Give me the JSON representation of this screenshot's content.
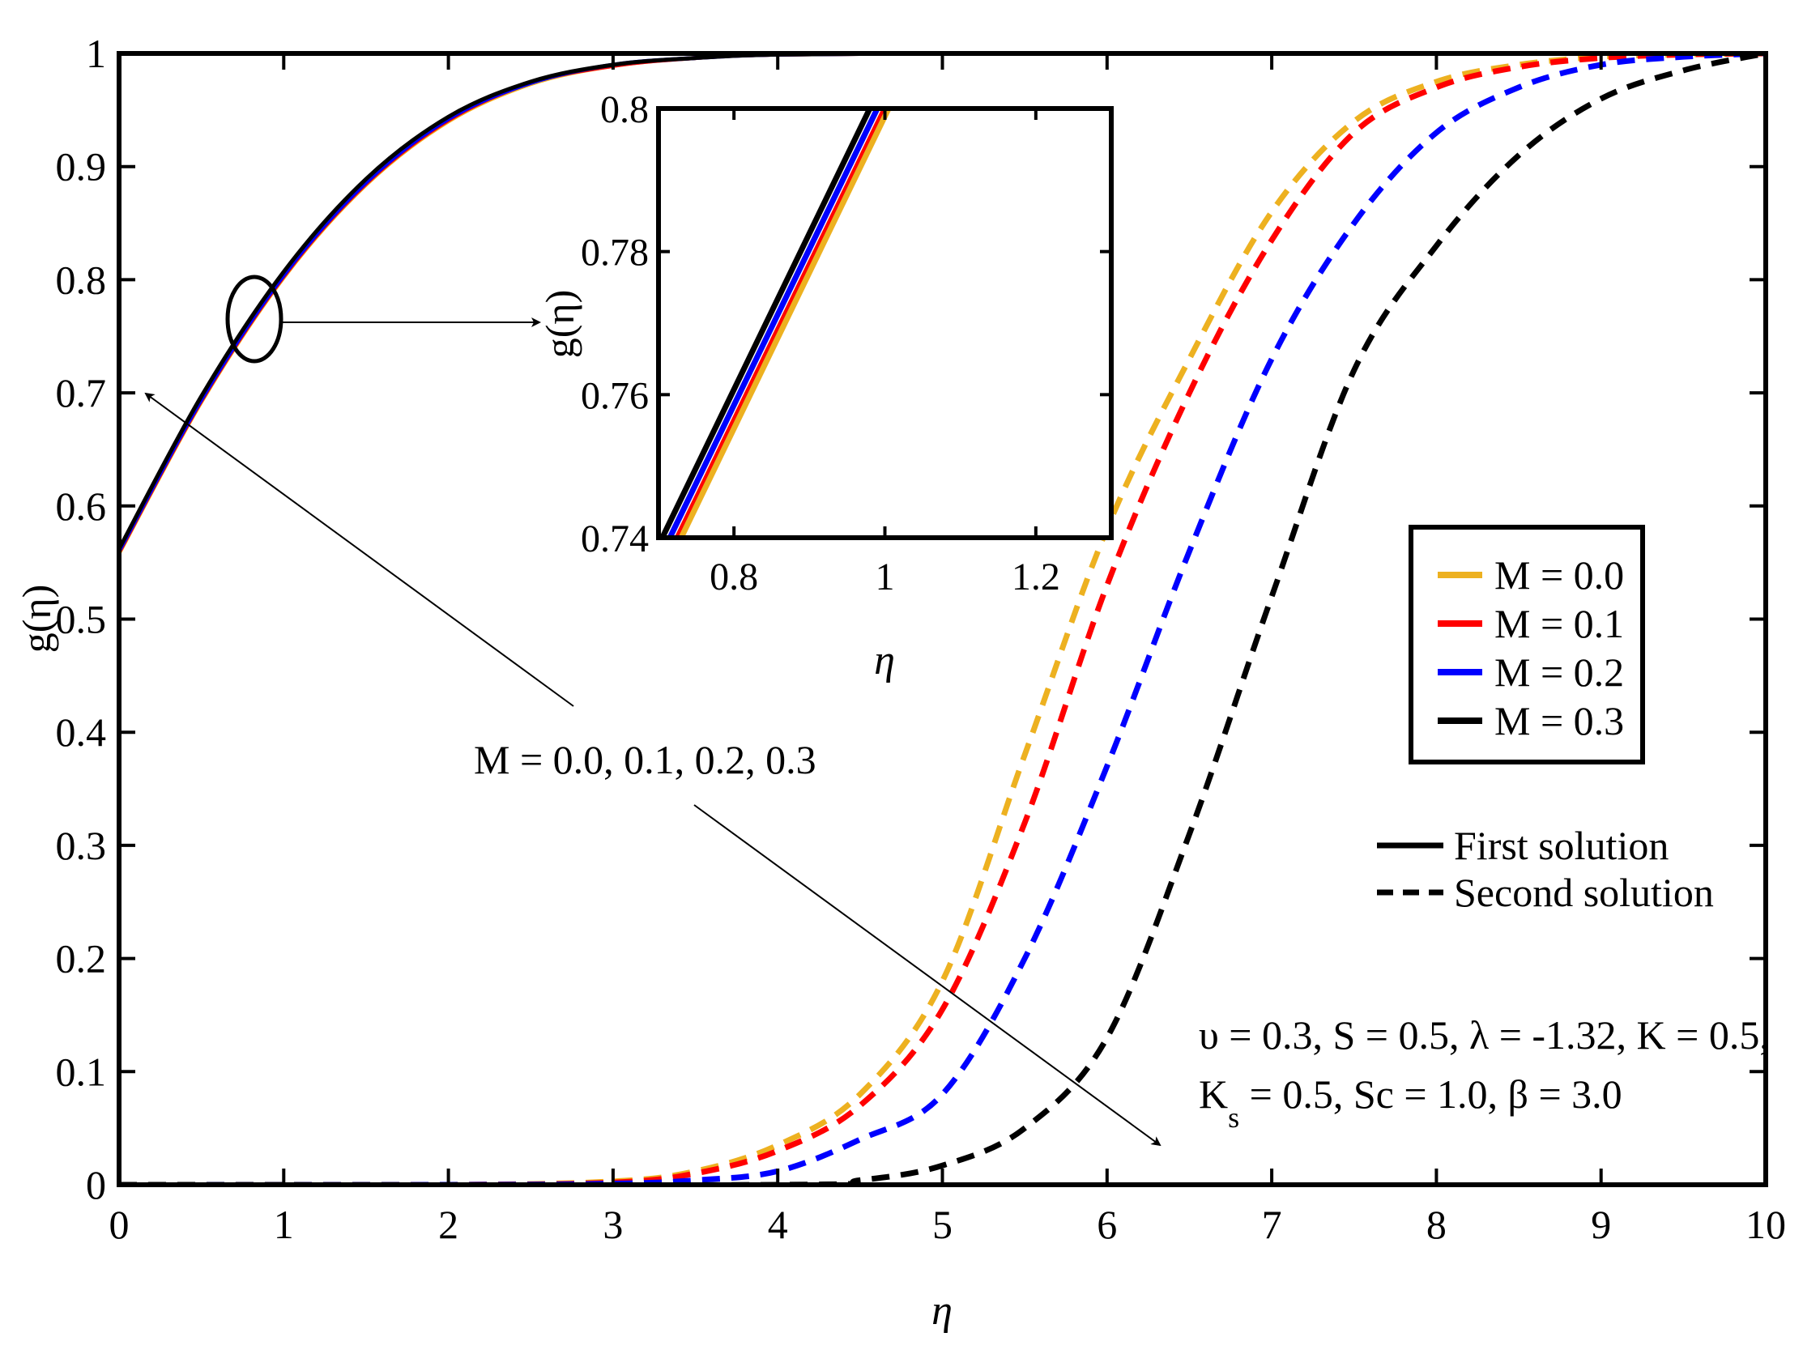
{
  "chart_data": {
    "type": "line",
    "title": "",
    "xlabel": "η",
    "ylabel": "g(η)",
    "xlim": [
      0,
      10
    ],
    "ylim": [
      0,
      1
    ],
    "xticks": [
      "0",
      "1",
      "2",
      "3",
      "4",
      "5",
      "6",
      "7",
      "8",
      "9",
      "10"
    ],
    "yticks": [
      "0",
      "0.1",
      "0.2",
      "0.3",
      "0.4",
      "0.5",
      "0.6",
      "0.7",
      "0.8",
      "0.9",
      "1"
    ],
    "grid": false,
    "legend_position": "right",
    "legend": [
      {
        "label": "M = 0.0",
        "color": "#EDB120"
      },
      {
        "label": "M = 0.1",
        "color": "#FF0000"
      },
      {
        "label": "M = 0.2",
        "color": "#0000FF"
      },
      {
        "label": "M = 0.3",
        "color": "#000000"
      }
    ],
    "style_legend": [
      {
        "label": "First solution",
        "dash": "solid"
      },
      {
        "label": "Second solution",
        "dash": "dashed"
      }
    ],
    "annotation_arrow_label": "M = 0.0, 0.1, 0.2, 0.3",
    "parameters_line1": "υ = 0.3, S = 0.5, λ = -1.32, K = 0.5,",
    "parameters_line2_k": "K",
    "parameters_line2_sub": "s",
    "parameters_line2_rest": " = 0.5, Sc = 1.0, β = 3.0",
    "series": [
      {
        "M": 0.0,
        "solution": "first",
        "color": "#EDB120",
        "x": [
          0,
          0.5,
          1,
          1.5,
          2,
          2.5,
          3,
          3.5,
          4,
          5,
          6,
          10
        ],
        "y": [
          0.558,
          0.692,
          0.802,
          0.884,
          0.94,
          0.973,
          0.989,
          0.996,
          0.999,
          1.0,
          1.0,
          1.0
        ]
      },
      {
        "M": 0.1,
        "solution": "first",
        "color": "#FF0000",
        "x": [
          0,
          0.5,
          1,
          1.5,
          2,
          2.5,
          3,
          3.5,
          4,
          5,
          6,
          10
        ],
        "y": [
          0.559,
          0.693,
          0.803,
          0.885,
          0.941,
          0.974,
          0.989,
          0.996,
          0.999,
          1.0,
          1.0,
          1.0
        ]
      },
      {
        "M": 0.2,
        "solution": "first",
        "color": "#0000FF",
        "x": [
          0,
          0.5,
          1,
          1.5,
          2,
          2.5,
          3,
          3.5,
          4,
          5,
          6,
          10
        ],
        "y": [
          0.56,
          0.694,
          0.804,
          0.886,
          0.942,
          0.974,
          0.99,
          0.996,
          0.999,
          1.0,
          1.0,
          1.0
        ]
      },
      {
        "M": 0.3,
        "solution": "first",
        "color": "#000000",
        "x": [
          0,
          0.5,
          1,
          1.5,
          2,
          2.5,
          3,
          3.5,
          4,
          5,
          6,
          10
        ],
        "y": [
          0.562,
          0.697,
          0.807,
          0.889,
          0.944,
          0.975,
          0.99,
          0.996,
          0.999,
          1.0,
          1.0,
          1.0
        ]
      },
      {
        "M": 0.0,
        "solution": "second",
        "color": "#EDB120",
        "x": [
          0,
          2,
          3,
          3.5,
          4,
          4.5,
          5,
          5.5,
          6,
          6.5,
          7,
          7.5,
          8,
          8.5,
          9,
          9.5,
          10
        ],
        "y": [
          0,
          0.0,
          0.003,
          0.012,
          0.035,
          0.08,
          0.18,
          0.38,
          0.58,
          0.73,
          0.86,
          0.94,
          0.975,
          0.99,
          0.997,
          0.999,
          1.0
        ]
      },
      {
        "M": 0.1,
        "solution": "second",
        "color": "#FF0000",
        "x": [
          0,
          2,
          3,
          3.5,
          4,
          4.5,
          5,
          5.5,
          6,
          6.5,
          7,
          7.5,
          8,
          8.5,
          9,
          9.5,
          10
        ],
        "y": [
          0,
          0.0,
          0.002,
          0.01,
          0.03,
          0.07,
          0.155,
          0.32,
          0.53,
          0.7,
          0.835,
          0.93,
          0.97,
          0.988,
          0.996,
          0.999,
          1.0
        ]
      },
      {
        "M": 0.2,
        "solution": "second",
        "color": "#0000FF",
        "x": [
          0,
          2,
          3,
          3.5,
          4,
          4.5,
          5,
          5.5,
          6,
          6.5,
          7,
          7.5,
          8,
          8.5,
          9,
          9.5,
          10
        ],
        "y": [
          0,
          0.0,
          0.001,
          0.004,
          0.012,
          0.04,
          0.08,
          0.2,
          0.37,
          0.56,
          0.73,
          0.85,
          0.93,
          0.97,
          0.99,
          0.997,
          1.0
        ]
      },
      {
        "M": 0.3,
        "solution": "second",
        "color": "#000000",
        "x": [
          0,
          4,
          4.5,
          5,
          5.5,
          6,
          6.5,
          7,
          7.5,
          8,
          8.5,
          9,
          9.5,
          10
        ],
        "y": [
          0,
          0.0,
          0.004,
          0.017,
          0.05,
          0.13,
          0.31,
          0.52,
          0.72,
          0.83,
          0.91,
          0.96,
          0.985,
          1.0
        ]
      }
    ],
    "inset": {
      "xlabel": "η",
      "ylabel": "g(η)",
      "xlim": [
        0.7,
        1.3
      ],
      "ylim": [
        0.74,
        0.8
      ],
      "xticks": [
        "0.8",
        "1",
        "1.2"
      ],
      "yticks": [
        "0.74",
        "0.76",
        "0.78",
        "0.8"
      ],
      "series": [
        {
          "M": 0.3,
          "color": "#000000",
          "x": [
            0.705,
            0.98
          ],
          "y": [
            0.74,
            0.8
          ]
        },
        {
          "M": 0.2,
          "color": "#0000FF",
          "x": [
            0.715,
            0.99
          ],
          "y": [
            0.74,
            0.8
          ]
        },
        {
          "M": 0.1,
          "color": "#FF0000",
          "x": [
            0.725,
            1.0
          ],
          "y": [
            0.74,
            0.8
          ]
        },
        {
          "M": 0.0,
          "color": "#EDB120",
          "x": [
            0.73,
            1.005
          ],
          "y": [
            0.74,
            0.8
          ]
        }
      ]
    }
  }
}
